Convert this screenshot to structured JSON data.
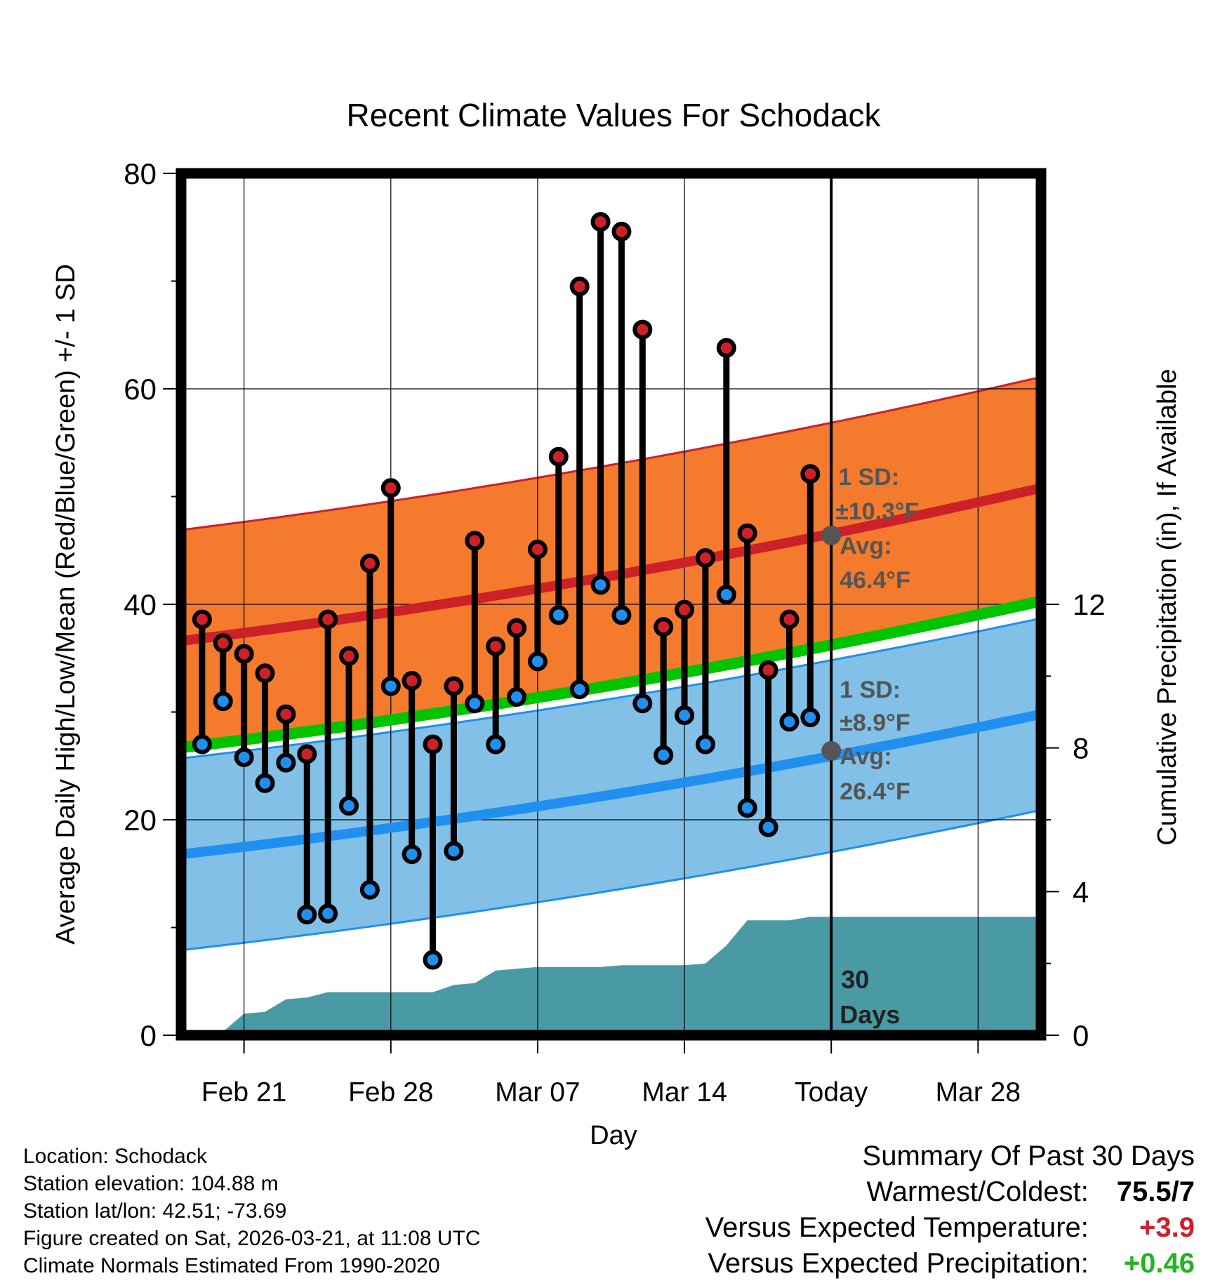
{
  "chart_data": {
    "type": "line",
    "title": "Recent Climate Values For Schodack",
    "xlabel": "Day",
    "ylabel": "Average Daily High/Low/Mean (Red/Blue/Green) +/- 1 SD",
    "y2label": "Cumulative Precipitation (in), If Available",
    "ylim": [
      0,
      80
    ],
    "y2lim": [
      0,
      24
    ],
    "xlim": [
      0,
      41
    ],
    "yticks": [
      "0",
      "20",
      "40",
      "60",
      "80"
    ],
    "y2ticks": [
      "0",
      "4",
      "8",
      "12"
    ],
    "y2tick_values": [
      0,
      4,
      8,
      12
    ],
    "xticks": [
      {
        "day": 3,
        "label": "Feb 21"
      },
      {
        "day": 10,
        "label": "Feb 28"
      },
      {
        "day": 17,
        "label": "Mar 07"
      },
      {
        "day": 24,
        "label": "Mar 14"
      },
      {
        "day": 31,
        "label": "Today"
      },
      {
        "day": 38,
        "label": "Mar 28"
      }
    ],
    "today_day": 31,
    "days_label": "30",
    "days_label2": "Days",
    "normal_high": {
      "start": 36.6,
      "end": 50.8,
      "sd_label": "1 SD:",
      "sd_value": "±10.3°F",
      "avg_label": "Avg:",
      "avg_value": "46.4°F",
      "avg_at_today": 46.4,
      "sd": 10.3
    },
    "normal_low": {
      "start": 16.8,
      "end": 29.8,
      "sd_label": "1 SD:",
      "sd_value": "±8.9°F",
      "avg_label": "Avg:",
      "avg_value": "26.4°F",
      "avg_at_today": 26.4,
      "sd": 8.9
    },
    "normal_mean": {
      "start": 26.7,
      "end": 40.3
    },
    "highs": [
      38.6,
      36.4,
      35.4,
      33.6,
      29.8,
      26.1,
      38.6,
      35.2,
      43.8,
      50.8,
      32.9,
      27.0,
      32.4,
      45.9,
      36.1,
      37.8,
      45.1,
      53.7,
      69.5,
      75.5,
      74.6,
      65.5,
      37.9,
      39.5,
      44.3,
      63.8,
      46.6,
      33.9,
      38.6,
      52.1
    ],
    "lows": [
      27.0,
      31.0,
      25.8,
      23.4,
      25.3,
      11.2,
      11.3,
      21.3,
      13.5,
      32.4,
      16.8,
      7.0,
      17.1,
      30.8,
      27.0,
      31.4,
      34.7,
      39.0,
      32.1,
      41.8,
      39.0,
      30.8,
      26.0,
      29.7,
      27.0,
      40.9,
      21.1,
      19.3,
      29.1,
      29.5
    ],
    "precip_cumulative": [
      [
        0,
        0.0
      ],
      [
        1,
        0.0
      ],
      [
        2,
        0.1
      ],
      [
        3,
        0.6
      ],
      [
        4,
        0.65
      ],
      [
        5,
        1.0
      ],
      [
        6,
        1.05
      ],
      [
        7,
        1.2
      ],
      [
        8,
        1.2
      ],
      [
        9,
        1.2
      ],
      [
        10,
        1.2
      ],
      [
        11,
        1.2
      ],
      [
        12,
        1.2
      ],
      [
        13,
        1.4
      ],
      [
        14,
        1.45
      ],
      [
        15,
        1.8
      ],
      [
        16,
        1.85
      ],
      [
        17,
        1.9
      ],
      [
        18,
        1.9
      ],
      [
        19,
        1.9
      ],
      [
        20,
        1.9
      ],
      [
        21,
        1.95
      ],
      [
        22,
        1.95
      ],
      [
        23,
        1.95
      ],
      [
        24,
        1.95
      ],
      [
        25,
        2.0
      ],
      [
        26,
        2.5
      ],
      [
        27,
        3.2
      ],
      [
        28,
        3.2
      ],
      [
        29,
        3.2
      ],
      [
        30,
        3.3
      ],
      [
        31,
        3.3
      ],
      [
        32,
        3.3
      ],
      [
        41,
        3.3
      ]
    ]
  },
  "metadata": {
    "location": "Location: Schodack",
    "elevation": "Station elevation: 104.88 m",
    "latlon": "Station lat/lon: 42.51; -73.69",
    "created": "Figure created on Sat, 2026-03-21, at 11:08 UTC",
    "normals": "Climate Normals Estimated From 1990-2020"
  },
  "summary": {
    "title": "Summary Of Past 30 Days",
    "warmest_label": "Warmest/Coldest:",
    "warmest_value": "75.5/7",
    "temp_label": "Versus Expected Temperature:",
    "temp_value": "+3.9",
    "precip_label": "Versus Expected Precipitation:",
    "precip_value": "+0.46"
  },
  "colors": {
    "high_band": "#f47a2e",
    "high_line": "#cc2128",
    "low_band": "#82c0e7",
    "low_line": "#1f8ff0",
    "mean_line": "#00c400",
    "precip": "#4a9aa5",
    "high_dot": "#cc2128",
    "low_dot": "#1f8ff0",
    "warm_text": "#d01f2a",
    "precip_text": "#22b422"
  }
}
